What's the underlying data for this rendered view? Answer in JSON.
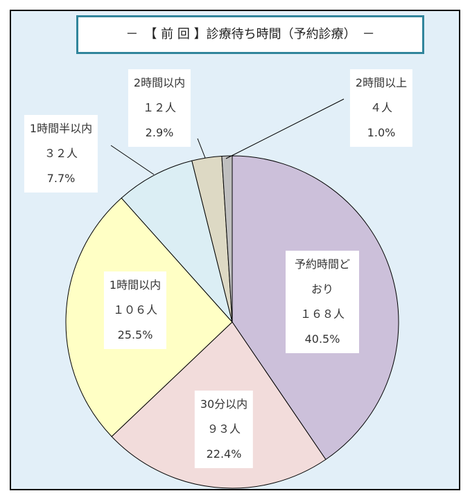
{
  "chart_data": {
    "type": "pie",
    "title": "－　【 前 回 】診療待ち時間（予約診療）　－",
    "categories": [
      "予約時間どおり",
      "30分以内",
      "1時間以内",
      "1時間半以内",
      "2時間以内",
      "2時間以上"
    ],
    "values": [
      40.5,
      22.4,
      25.5,
      7.7,
      2.9,
      1.0
    ],
    "value_labels": [
      "40.5%",
      "22.4%",
      "25.5%",
      "7.7%",
      "2.9%",
      "1.0%"
    ],
    "counts": [
      168,
      93,
      106,
      32,
      12,
      4
    ],
    "count_labels": [
      "１６８人",
      "９３人",
      "１０６人",
      "３２人",
      "１２人",
      "４人"
    ],
    "colors": [
      "#ccc0da",
      "#f2dcdb",
      "#ffffc5",
      "#dbeef4",
      "#ddd9c4",
      "#bfbfbf"
    ]
  }
}
